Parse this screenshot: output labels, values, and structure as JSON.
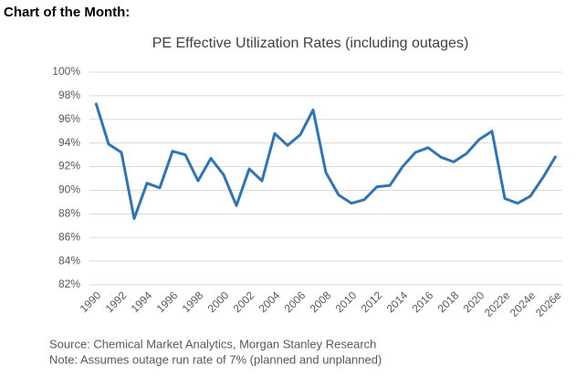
{
  "header": {
    "title": "Chart of the Month:"
  },
  "chart_data": {
    "type": "line",
    "title": "PE Effective Utilization Rates (including outages)",
    "categories": [
      "1990",
      null,
      "1992",
      null,
      "1994",
      null,
      "1996",
      null,
      "1998",
      null,
      "2000",
      null,
      "2002",
      null,
      "2004",
      null,
      "2006",
      null,
      "2008",
      null,
      "2010",
      null,
      "2012",
      null,
      "2014",
      null,
      "2016",
      null,
      "2018",
      null,
      "2020",
      null,
      "2022e",
      null,
      "2024e",
      null,
      "2026e"
    ],
    "series": [
      {
        "name": "PE Effective Utilization Rate",
        "color": "#2e75b6",
        "values": [
          97.4,
          93.9,
          93.2,
          87.6,
          90.6,
          90.2,
          93.3,
          93.0,
          90.8,
          92.7,
          91.3,
          88.7,
          91.8,
          90.8,
          94.8,
          93.8,
          94.7,
          96.8,
          91.5,
          89.6,
          88.9,
          89.2,
          90.3,
          90.4,
          92.0,
          93.2,
          93.6,
          92.8,
          92.4,
          93.1,
          94.3,
          95.0,
          89.3,
          88.9,
          89.5,
          91.1,
          92.9
        ]
      }
    ],
    "ylim": [
      82,
      100
    ],
    "yticks": [
      {
        "value": 82,
        "label": "82%"
      },
      {
        "value": 84,
        "label": "84%"
      },
      {
        "value": 86,
        "label": "86%"
      },
      {
        "value": 88,
        "label": "88%"
      },
      {
        "value": 90,
        "label": "90%"
      },
      {
        "value": 92,
        "label": "92%"
      },
      {
        "value": 94,
        "label": "94%"
      },
      {
        "value": 96,
        "label": "96%"
      },
      {
        "value": 98,
        "label": "98%"
      },
      {
        "value": 100,
        "label": "100%"
      }
    ],
    "grid": true
  },
  "notes": {
    "source": "Source: Chemical Market Analytics, Morgan Stanley Research",
    "note": "Note: Assumes outage run rate of 7% (planned and unplanned)"
  }
}
